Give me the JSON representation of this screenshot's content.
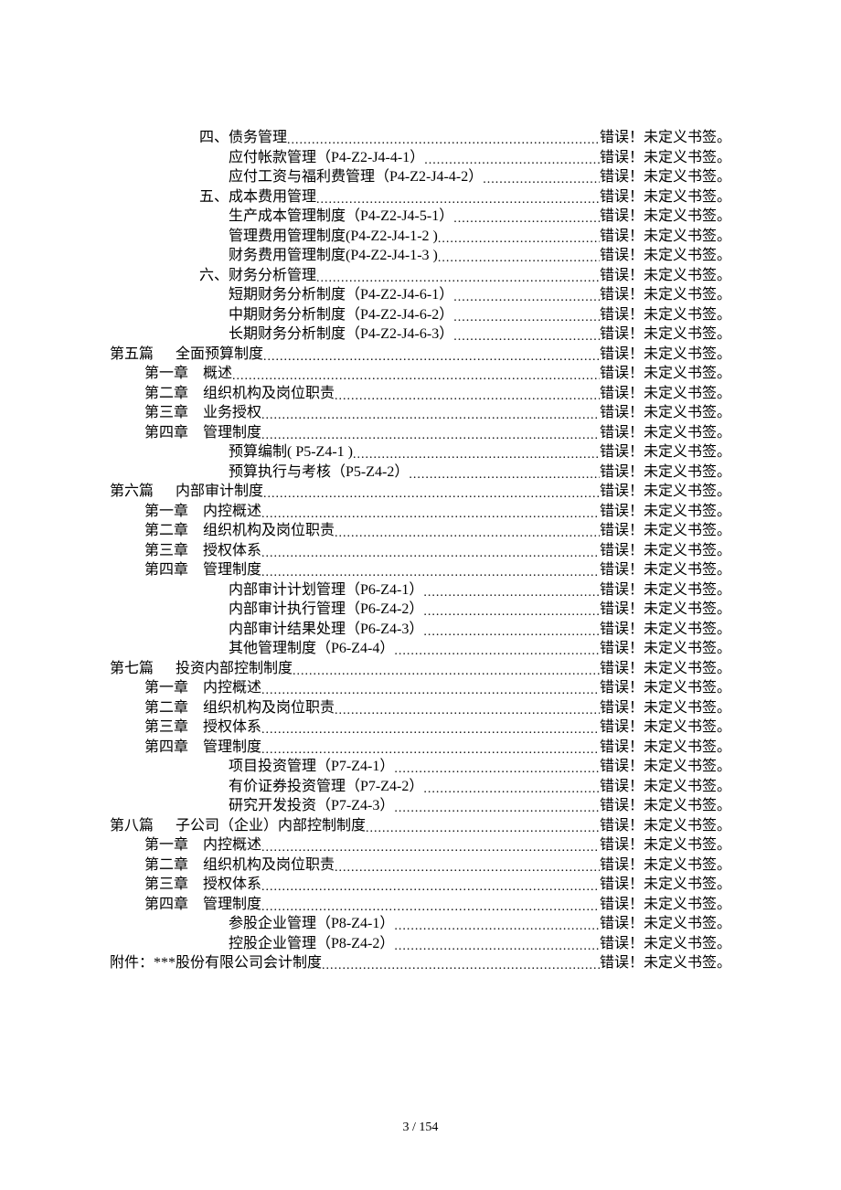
{
  "error_text": "错误！",
  "bookmark_text": "未定义书签。",
  "footer": "3  /  154",
  "entries": [
    {
      "indent": "indent-2",
      "label": "四、",
      "title": "债务管理"
    },
    {
      "indent": "indent-3",
      "label": "",
      "title": "应付帐款管理（P4-Z2-J4-4-1）"
    },
    {
      "indent": "indent-3",
      "label": "",
      "title": "应付工资与福利费管理（P4-Z2-J4-4-2）"
    },
    {
      "indent": "indent-2",
      "label": "五、",
      "title": "成本费用管理"
    },
    {
      "indent": "indent-3",
      "label": "",
      "title": "生产成本管理制度（P4-Z2-J4-5-1）"
    },
    {
      "indent": "indent-3",
      "label": "",
      "title": "管理费用管理制度(P4-Z2-J4-1-2 )"
    },
    {
      "indent": "indent-3",
      "label": "",
      "title": "财务费用管理制度(P4-Z2-J4-1-3 )"
    },
    {
      "indent": "indent-2",
      "label": "六、",
      "title": "财务分析管理"
    },
    {
      "indent": "indent-3",
      "label": "",
      "title": "短期财务分析制度（P4-Z2-J4-6-1）"
    },
    {
      "indent": "indent-3",
      "label": "",
      "title": "中期财务分析制度（P4-Z2-J4-6-2）"
    },
    {
      "indent": "indent-3",
      "label": "",
      "title": "长期财务分析制度（P4-Z2-J4-6-3）"
    },
    {
      "indent": "indent-0",
      "label": "第五篇　  ",
      "title": "全面预算制度"
    },
    {
      "indent": "indent-1",
      "label": "第一章　",
      "title": "概述"
    },
    {
      "indent": "indent-1",
      "label": "第二章　",
      "title": "组织机构及岗位职责"
    },
    {
      "indent": "indent-1",
      "label": "第三章　",
      "title": "业务授权"
    },
    {
      "indent": "indent-1",
      "label": "第四章　",
      "title": "管理制度"
    },
    {
      "indent": "indent-3b",
      "label": "",
      "title": "预算编制( P5-Z4-1 )"
    },
    {
      "indent": "indent-3b",
      "label": "",
      "title": "预算执行与考核（P5-Z4-2）"
    },
    {
      "indent": "indent-0",
      "label": "第六篇　  ",
      "title": "内部审计制度"
    },
    {
      "indent": "indent-1",
      "label": "第一章　",
      "title": "内控概述"
    },
    {
      "indent": "indent-1",
      "label": "第二章　",
      "title": "组织机构及岗位职责"
    },
    {
      "indent": "indent-1",
      "label": "第三章　",
      "title": "授权体系"
    },
    {
      "indent": "indent-1",
      "label": "第四章　",
      "title": "管理制度"
    },
    {
      "indent": "indent-3b",
      "label": "",
      "title": "内部审计计划管理（P6-Z4-1）"
    },
    {
      "indent": "indent-3b",
      "label": "",
      "title": "内部审计执行管理（P6-Z4-2）"
    },
    {
      "indent": "indent-3b",
      "label": "",
      "title": "内部审计结果处理（P6-Z4-3）"
    },
    {
      "indent": "indent-3b",
      "label": "",
      "title": "其他管理制度（P6-Z4-4）"
    },
    {
      "indent": "indent-0",
      "label": "第七篇　  ",
      "title": "投资内部控制制度"
    },
    {
      "indent": "indent-1",
      "label": "第一章　",
      "title": "内控概述"
    },
    {
      "indent": "indent-1",
      "label": "第二章　",
      "title": "组织机构及岗位职责"
    },
    {
      "indent": "indent-1",
      "label": "第三章　",
      "title": "授权体系"
    },
    {
      "indent": "indent-1",
      "label": "第四章　",
      "title": "管理制度"
    },
    {
      "indent": "indent-3b",
      "label": "",
      "title": "项目投资管理（P7-Z4-1）"
    },
    {
      "indent": "indent-3b",
      "label": "",
      "title": "有价证券投资管理（P7-Z4-2）"
    },
    {
      "indent": "indent-3b",
      "label": "",
      "title": "研究开发投资（P7-Z4-3）"
    },
    {
      "indent": "indent-0",
      "label": "第八篇　  ",
      "title": "子公司（企业）内部控制制度"
    },
    {
      "indent": "indent-1",
      "label": "第一章　",
      "title": "内控概述"
    },
    {
      "indent": "indent-1",
      "label": "第二章　",
      "title": "组织机构及岗位职责"
    },
    {
      "indent": "indent-1",
      "label": "第三章　",
      "title": "授权体系"
    },
    {
      "indent": "indent-1",
      "label": "第四章　",
      "title": "管理制度"
    },
    {
      "indent": "indent-3b",
      "label": "",
      "title": "参股企业管理（P8-Z4-1）"
    },
    {
      "indent": "indent-3b",
      "label": "",
      "title": "控股企业管理（P8-Z4-2）"
    },
    {
      "indent": "indent-0",
      "label": "",
      "title": "附件：***股份有限公司会计制度"
    }
  ]
}
